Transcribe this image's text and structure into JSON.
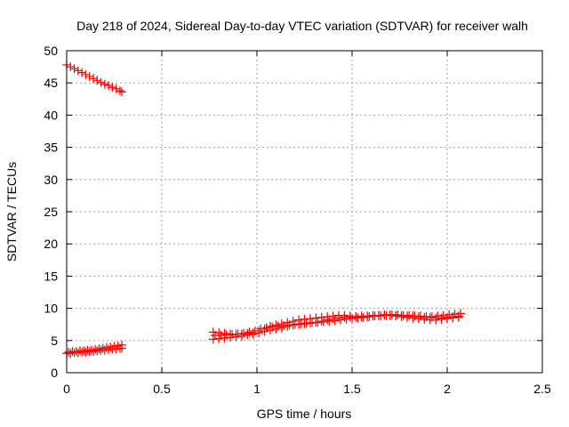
{
  "chart_data": {
    "type": "scatter",
    "title": "Day 218 of 2024, Sidereal Day-to-day VTEC variation (SDTVAR) for receiver walh",
    "xlabel": "GPS time / hours",
    "ylabel": "SDTVAR / TECUs",
    "xlim": [
      0,
      2.5
    ],
    "ylim": [
      0,
      50
    ],
    "xticks": [
      0,
      0.5,
      1,
      1.5,
      2,
      2.5
    ],
    "xtick_labels": [
      "0",
      "0.5",
      "1",
      "1.5",
      "2",
      "2.5"
    ],
    "yticks": [
      0,
      5,
      10,
      15,
      20,
      25,
      30,
      35,
      40,
      45,
      50
    ],
    "ytick_labels": [
      "0",
      "5",
      "10",
      "15",
      "20",
      "25",
      "30",
      "35",
      "40",
      "45",
      "50"
    ],
    "grid": true,
    "marker": "+",
    "color": "#ff0000",
    "series": [
      {
        "name": "upper-segment",
        "x": [
          0.0,
          0.02,
          0.04,
          0.06,
          0.08,
          0.1,
          0.12,
          0.14,
          0.16,
          0.18,
          0.2,
          0.22,
          0.24,
          0.26,
          0.28,
          0.29
        ],
        "y": [
          47.8,
          47.5,
          47.2,
          46.9,
          46.6,
          46.3,
          46.0,
          45.7,
          45.4,
          45.1,
          44.8,
          44.6,
          44.3,
          44.1,
          43.8,
          43.6
        ]
      },
      {
        "name": "early-band-a",
        "x": [
          0.0,
          0.02,
          0.04,
          0.06,
          0.08,
          0.1,
          0.12,
          0.14,
          0.16,
          0.18,
          0.2,
          0.22,
          0.24,
          0.26,
          0.28,
          0.29
        ],
        "y": [
          3.0,
          3.0,
          3.1,
          3.1,
          3.2,
          3.2,
          3.3,
          3.3,
          3.4,
          3.5,
          3.5,
          3.6,
          3.7,
          3.7,
          3.8,
          3.8
        ]
      },
      {
        "name": "early-band-b",
        "x": [
          0.01,
          0.03,
          0.05,
          0.07,
          0.09,
          0.11,
          0.13,
          0.15,
          0.17,
          0.19,
          0.21,
          0.23,
          0.25,
          0.27,
          0.29
        ],
        "y": [
          3.2,
          3.3,
          3.3,
          3.4,
          3.4,
          3.5,
          3.5,
          3.6,
          3.7,
          3.8,
          3.9,
          4.0,
          4.1,
          4.2,
          4.3
        ]
      },
      {
        "name": "late-band-a",
        "x": [
          0.77,
          0.8,
          0.83,
          0.86,
          0.89,
          0.92,
          0.95,
          0.98,
          1.01,
          1.04,
          1.07,
          1.1,
          1.13,
          1.16,
          1.19,
          1.22,
          1.25,
          1.28,
          1.31,
          1.34,
          1.37,
          1.4,
          1.43,
          1.46,
          1.49,
          1.52,
          1.55,
          1.58,
          1.61,
          1.64,
          1.67,
          1.7,
          1.73,
          1.76,
          1.79,
          1.82,
          1.85,
          1.88,
          1.91,
          1.94,
          1.97,
          2.0,
          2.03,
          2.06
        ],
        "y": [
          5.2,
          5.3,
          5.4,
          5.5,
          5.6,
          5.7,
          5.9,
          6.0,
          6.2,
          6.4,
          6.6,
          6.8,
          7.0,
          7.2,
          7.4,
          7.5,
          7.6,
          7.7,
          7.8,
          8.0,
          8.2,
          8.4,
          8.5,
          8.6,
          8.6,
          8.7,
          8.8,
          8.8,
          8.9,
          8.9,
          9.0,
          9.0,
          8.9,
          8.9,
          8.8,
          8.8,
          8.7,
          8.6,
          8.6,
          8.5,
          8.5,
          8.6,
          8.7,
          8.8
        ]
      },
      {
        "name": "late-band-b",
        "x": [
          0.77,
          0.8,
          0.83,
          0.86,
          0.89,
          0.92,
          0.95,
          0.98,
          1.01,
          1.04,
          1.07,
          1.1,
          1.13,
          1.16,
          1.19,
          1.22,
          1.25,
          1.28,
          1.31,
          1.34,
          1.37,
          1.4,
          1.43,
          1.46,
          1.49,
          1.52,
          1.55,
          1.58,
          1.61,
          1.64,
          1.67,
          1.7,
          1.73,
          1.76,
          1.79,
          1.82,
          1.85,
          1.88,
          1.91,
          1.94,
          1.97,
          2.0,
          2.03,
          2.06
        ],
        "y": [
          6.3,
          6.2,
          6.1,
          6.0,
          6.0,
          6.0,
          6.1,
          6.2,
          6.5,
          6.8,
          7.2,
          7.4,
          7.6,
          7.8,
          8.0,
          8.2,
          8.3,
          8.4,
          8.5,
          8.6,
          8.7,
          8.8,
          8.9,
          8.9,
          8.8,
          8.7,
          8.6,
          8.7,
          8.8,
          8.9,
          9.0,
          8.9,
          8.8,
          8.7,
          8.6,
          8.5,
          8.4,
          8.3,
          8.2,
          8.2,
          8.3,
          8.4,
          8.5,
          8.6
        ]
      },
      {
        "name": "late-band-c",
        "x": [
          0.78,
          0.81,
          0.84,
          0.87,
          0.9,
          0.93,
          0.96,
          0.99,
          1.02,
          1.05,
          1.08,
          1.11,
          1.14,
          1.17,
          1.2,
          1.23,
          1.26,
          1.29,
          1.32,
          1.35,
          1.38,
          1.41,
          1.44,
          1.47,
          1.5,
          1.53,
          1.56,
          1.59,
          1.62,
          1.65,
          1.68,
          1.71,
          1.74,
          1.77,
          1.8,
          1.83,
          1.86,
          1.89,
          1.92,
          1.95,
          1.98,
          2.01,
          2.04,
          2.07
        ],
        "y": [
          5.8,
          5.8,
          5.9,
          5.9,
          6.0,
          6.1,
          6.3,
          6.5,
          6.8,
          7.0,
          7.1,
          7.2,
          7.3,
          7.4,
          7.5,
          7.6,
          7.7,
          7.8,
          7.8,
          7.9,
          8.0,
          8.1,
          8.2,
          8.3,
          8.4,
          8.5,
          8.6,
          8.7,
          8.8,
          8.8,
          8.9,
          9.0,
          9.0,
          8.9,
          8.9,
          8.8,
          8.8,
          8.7,
          8.7,
          8.8,
          8.9,
          9.0,
          9.1,
          9.2
        ]
      }
    ]
  }
}
